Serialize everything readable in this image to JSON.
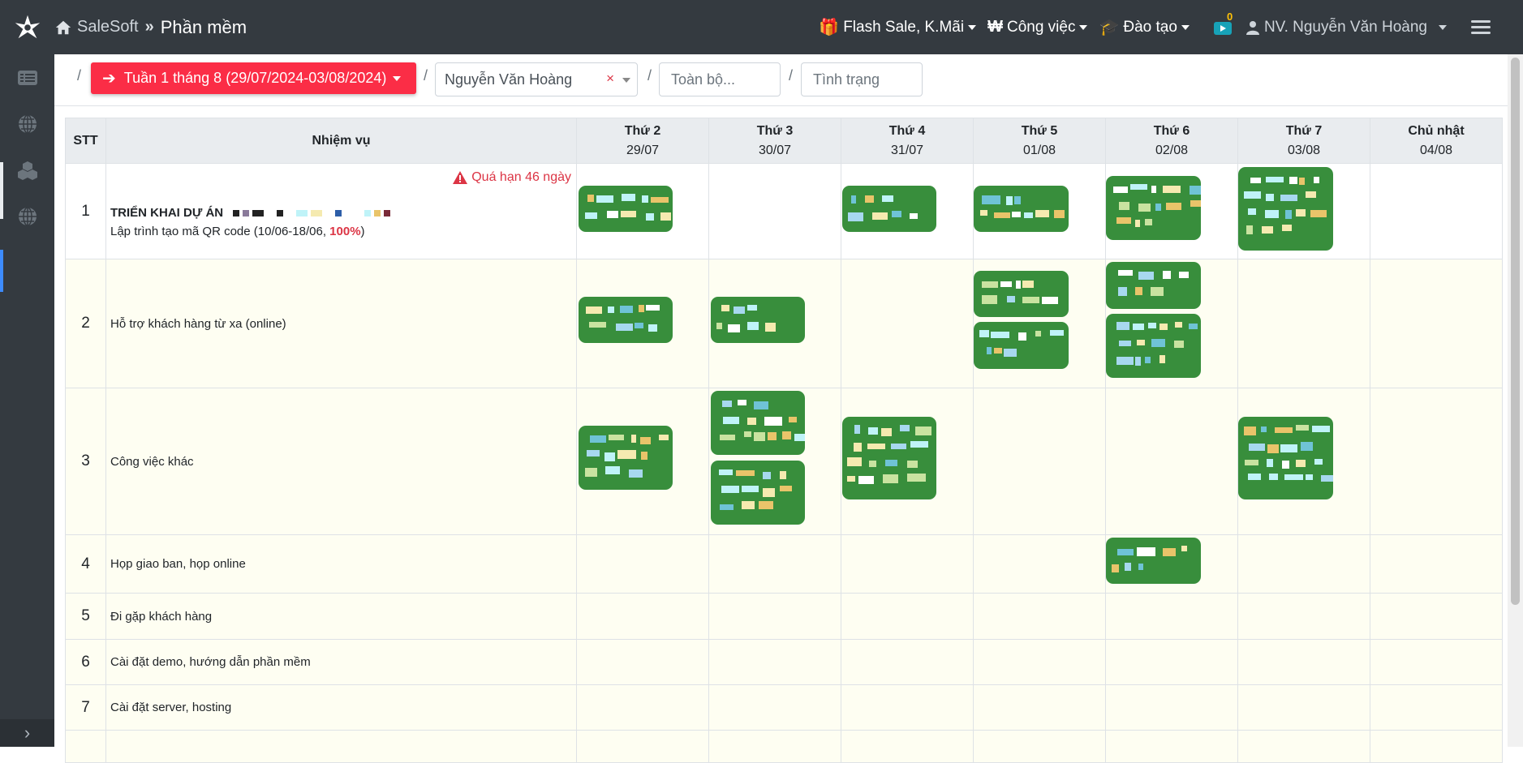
{
  "header": {
    "brand_name": "SaleSoft",
    "separator": "»",
    "current_module": "Phần mềm",
    "menus": [
      {
        "label": "Flash Sale, K.Mãi",
        "icon": "gift-icon"
      },
      {
        "label": "Công việc",
        "icon": "won-icon"
      },
      {
        "label": "Đào tạo",
        "icon": "graduation-cap-icon"
      }
    ],
    "notification_count": "0",
    "user_label": "NV. Nguyễn Văn Hoàng"
  },
  "sidebar": {
    "items": [
      "list-icon",
      "globe-icon",
      "cubes-icon",
      "globe-icon"
    ],
    "collapse_glyph": "›"
  },
  "filters": {
    "week_label": "Tuần 1 tháng 8 (29/07/2024-03/08/2024)",
    "employee_value": "Nguyễn Văn Hoàng",
    "clear_glyph": "×",
    "scope_placeholder": "Toàn bộ...",
    "status_placeholder": "Tình trạng",
    "separator": "/"
  },
  "table": {
    "col_stt": "STT",
    "col_task": "Nhiệm vụ",
    "days": [
      {
        "name": "Thứ 2",
        "date": "29/07"
      },
      {
        "name": "Thứ 3",
        "date": "30/07"
      },
      {
        "name": "Thứ 4",
        "date": "31/07"
      },
      {
        "name": "Thứ 5",
        "date": "01/08"
      },
      {
        "name": "Thứ 6",
        "date": "02/08"
      },
      {
        "name": "Thứ 7",
        "date": "03/08"
      },
      {
        "name": "Chủ nhật",
        "date": "04/08"
      }
    ],
    "rows": [
      {
        "stt": "1",
        "title": "TRIỂN KHAI DỰ ÁN",
        "subtitle": "Lập trình tạo mã QR code (10/06-18/06, ",
        "percent": "100%",
        "subtitle_end": ")",
        "overdue": "Quá hạn 46 ngày"
      },
      {
        "stt": "2",
        "title": "Hỗ trợ khách hàng từ xa (online)"
      },
      {
        "stt": "3",
        "title": "Công việc khác"
      },
      {
        "stt": "4",
        "title": "Họp giao ban, họp online"
      },
      {
        "stt": "5",
        "title": "Đi gặp khách hàng"
      },
      {
        "stt": "6",
        "title": "Cài đặt demo, hướng dẫn phần mềm"
      },
      {
        "stt": "7",
        "title": "Cài đặt server, hosting"
      }
    ]
  },
  "colors": {
    "topbar": "#343a40",
    "accent_red": "#fb2d46",
    "task_card": "#388e3c",
    "overdue": "#dc3545",
    "row_bg": "#fefef2"
  }
}
